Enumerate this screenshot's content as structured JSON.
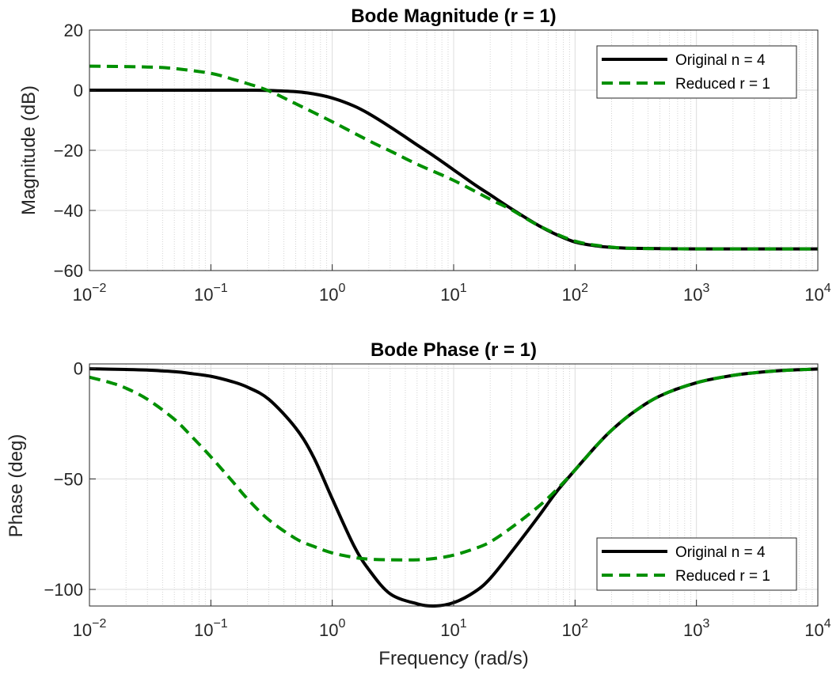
{
  "chart_data": [
    {
      "type": "line",
      "title": "Bode Magnitude (r = 1)",
      "xlabel": "",
      "ylabel": "Magnitude (dB)",
      "xscale": "log",
      "xlim": [
        0.01,
        10000
      ],
      "ylim": [
        -60,
        20
      ],
      "xticks": [
        {
          "base": "10",
          "exp": "−2"
        },
        {
          "base": "10",
          "exp": "−1"
        },
        {
          "base": "10",
          "exp": "0"
        },
        {
          "base": "10",
          "exp": "1"
        },
        {
          "base": "10",
          "exp": "2"
        },
        {
          "base": "10",
          "exp": "3"
        },
        {
          "base": "10",
          "exp": "4"
        }
      ],
      "yticks": [
        "−60",
        "−40",
        "−20",
        "0",
        "20"
      ],
      "grid": true,
      "legend_position": "top-right",
      "series": [
        {
          "name": "Original n = 4",
          "color": "#000000",
          "style": "solid",
          "x": [
            0.01,
            0.03,
            0.1,
            0.2,
            0.3,
            0.5,
            0.7,
            1,
            1.5,
            2,
            3,
            5,
            7,
            10,
            15,
            20,
            30,
            50,
            70,
            100,
            150,
            200,
            300,
            500,
            1000,
            3000,
            10000
          ],
          "y": [
            0,
            0,
            0,
            0,
            -0.1,
            -0.5,
            -1.2,
            -2.6,
            -5.2,
            -7.8,
            -12.2,
            -18.2,
            -22.1,
            -26.5,
            -31.5,
            -34.8,
            -39.5,
            -45,
            -48,
            -50.5,
            -51.8,
            -52.3,
            -52.6,
            -52.7,
            -52.8,
            -52.8,
            -52.8
          ]
        },
        {
          "name": "Reduced r = 1",
          "color": "#009000",
          "style": "dashed",
          "x": [
            0.01,
            0.03,
            0.05,
            0.1,
            0.15,
            0.2,
            0.3,
            0.5,
            1,
            2,
            3,
            5,
            10,
            20,
            30,
            50,
            100,
            200,
            300,
            500,
            1000,
            3000,
            10000
          ],
          "y": [
            8,
            7.7,
            7.2,
            5.6,
            3.7,
            2.2,
            -0.2,
            -4.5,
            -10.5,
            -16.8,
            -20.2,
            -24.6,
            -30,
            -36.3,
            -39.8,
            -45,
            -50.2,
            -52.2,
            -52.6,
            -52.7,
            -52.8,
            -52.8,
            -52.8
          ]
        }
      ]
    },
    {
      "type": "line",
      "title": "Bode Phase (r = 1)",
      "xlabel": "Frequency (rad/s)",
      "ylabel": "Phase (deg)",
      "xscale": "log",
      "xlim": [
        0.01,
        10000
      ],
      "ylim": [
        -107.5,
        2
      ],
      "xticks": [
        {
          "base": "10",
          "exp": "−2"
        },
        {
          "base": "10",
          "exp": "−1"
        },
        {
          "base": "10",
          "exp": "0"
        },
        {
          "base": "10",
          "exp": "1"
        },
        {
          "base": "10",
          "exp": "2"
        },
        {
          "base": "10",
          "exp": "3"
        },
        {
          "base": "10",
          "exp": "4"
        }
      ],
      "yticks": [
        "−100",
        "−50",
        "0"
      ],
      "ytick_values": [
        -100,
        -50,
        0
      ],
      "grid": true,
      "legend_position": "bottom-right",
      "series": [
        {
          "name": "Original n = 4",
          "color": "#000000",
          "style": "solid",
          "x": [
            0.01,
            0.02,
            0.03,
            0.05,
            0.07,
            0.1,
            0.15,
            0.2,
            0.3,
            0.5,
            0.7,
            1,
            1.5,
            2,
            3,
            5,
            7,
            10,
            15,
            20,
            30,
            50,
            70,
            100,
            150,
            200,
            300,
            500,
            1000,
            2000,
            3000,
            5000,
            10000
          ],
          "y": [
            -0.2,
            -0.5,
            -0.8,
            -1.5,
            -2.4,
            -3.6,
            -6,
            -8.5,
            -14,
            -27,
            -40,
            -59,
            -80,
            -91,
            -102,
            -106.5,
            -107.5,
            -106,
            -101,
            -95,
            -83,
            -67,
            -56,
            -46,
            -35,
            -28,
            -20,
            -12.5,
            -6.5,
            -3.2,
            -2,
            -1,
            -0.3
          ]
        },
        {
          "name": "Reduced r = 1",
          "color": "#009000",
          "style": "dashed",
          "x": [
            0.01,
            0.015,
            0.02,
            0.03,
            0.05,
            0.07,
            0.1,
            0.15,
            0.2,
            0.3,
            0.5,
            0.7,
            1,
            1.5,
            2,
            3,
            5,
            7,
            10,
            15,
            20,
            30,
            50,
            70,
            100,
            150,
            200,
            300,
            500,
            1000,
            2000,
            3000,
            5000,
            10000
          ],
          "y": [
            -4,
            -6.5,
            -9,
            -14,
            -23,
            -31,
            -40,
            -51,
            -59,
            -68.5,
            -77,
            -80.5,
            -83.5,
            -85.5,
            -86.3,
            -86.6,
            -86.6,
            -86,
            -84.5,
            -81.5,
            -78.5,
            -72,
            -62.5,
            -55,
            -46,
            -35,
            -28,
            -20,
            -12.5,
            -6.5,
            -3.2,
            -2,
            -1,
            -0.3
          ]
        }
      ]
    }
  ]
}
